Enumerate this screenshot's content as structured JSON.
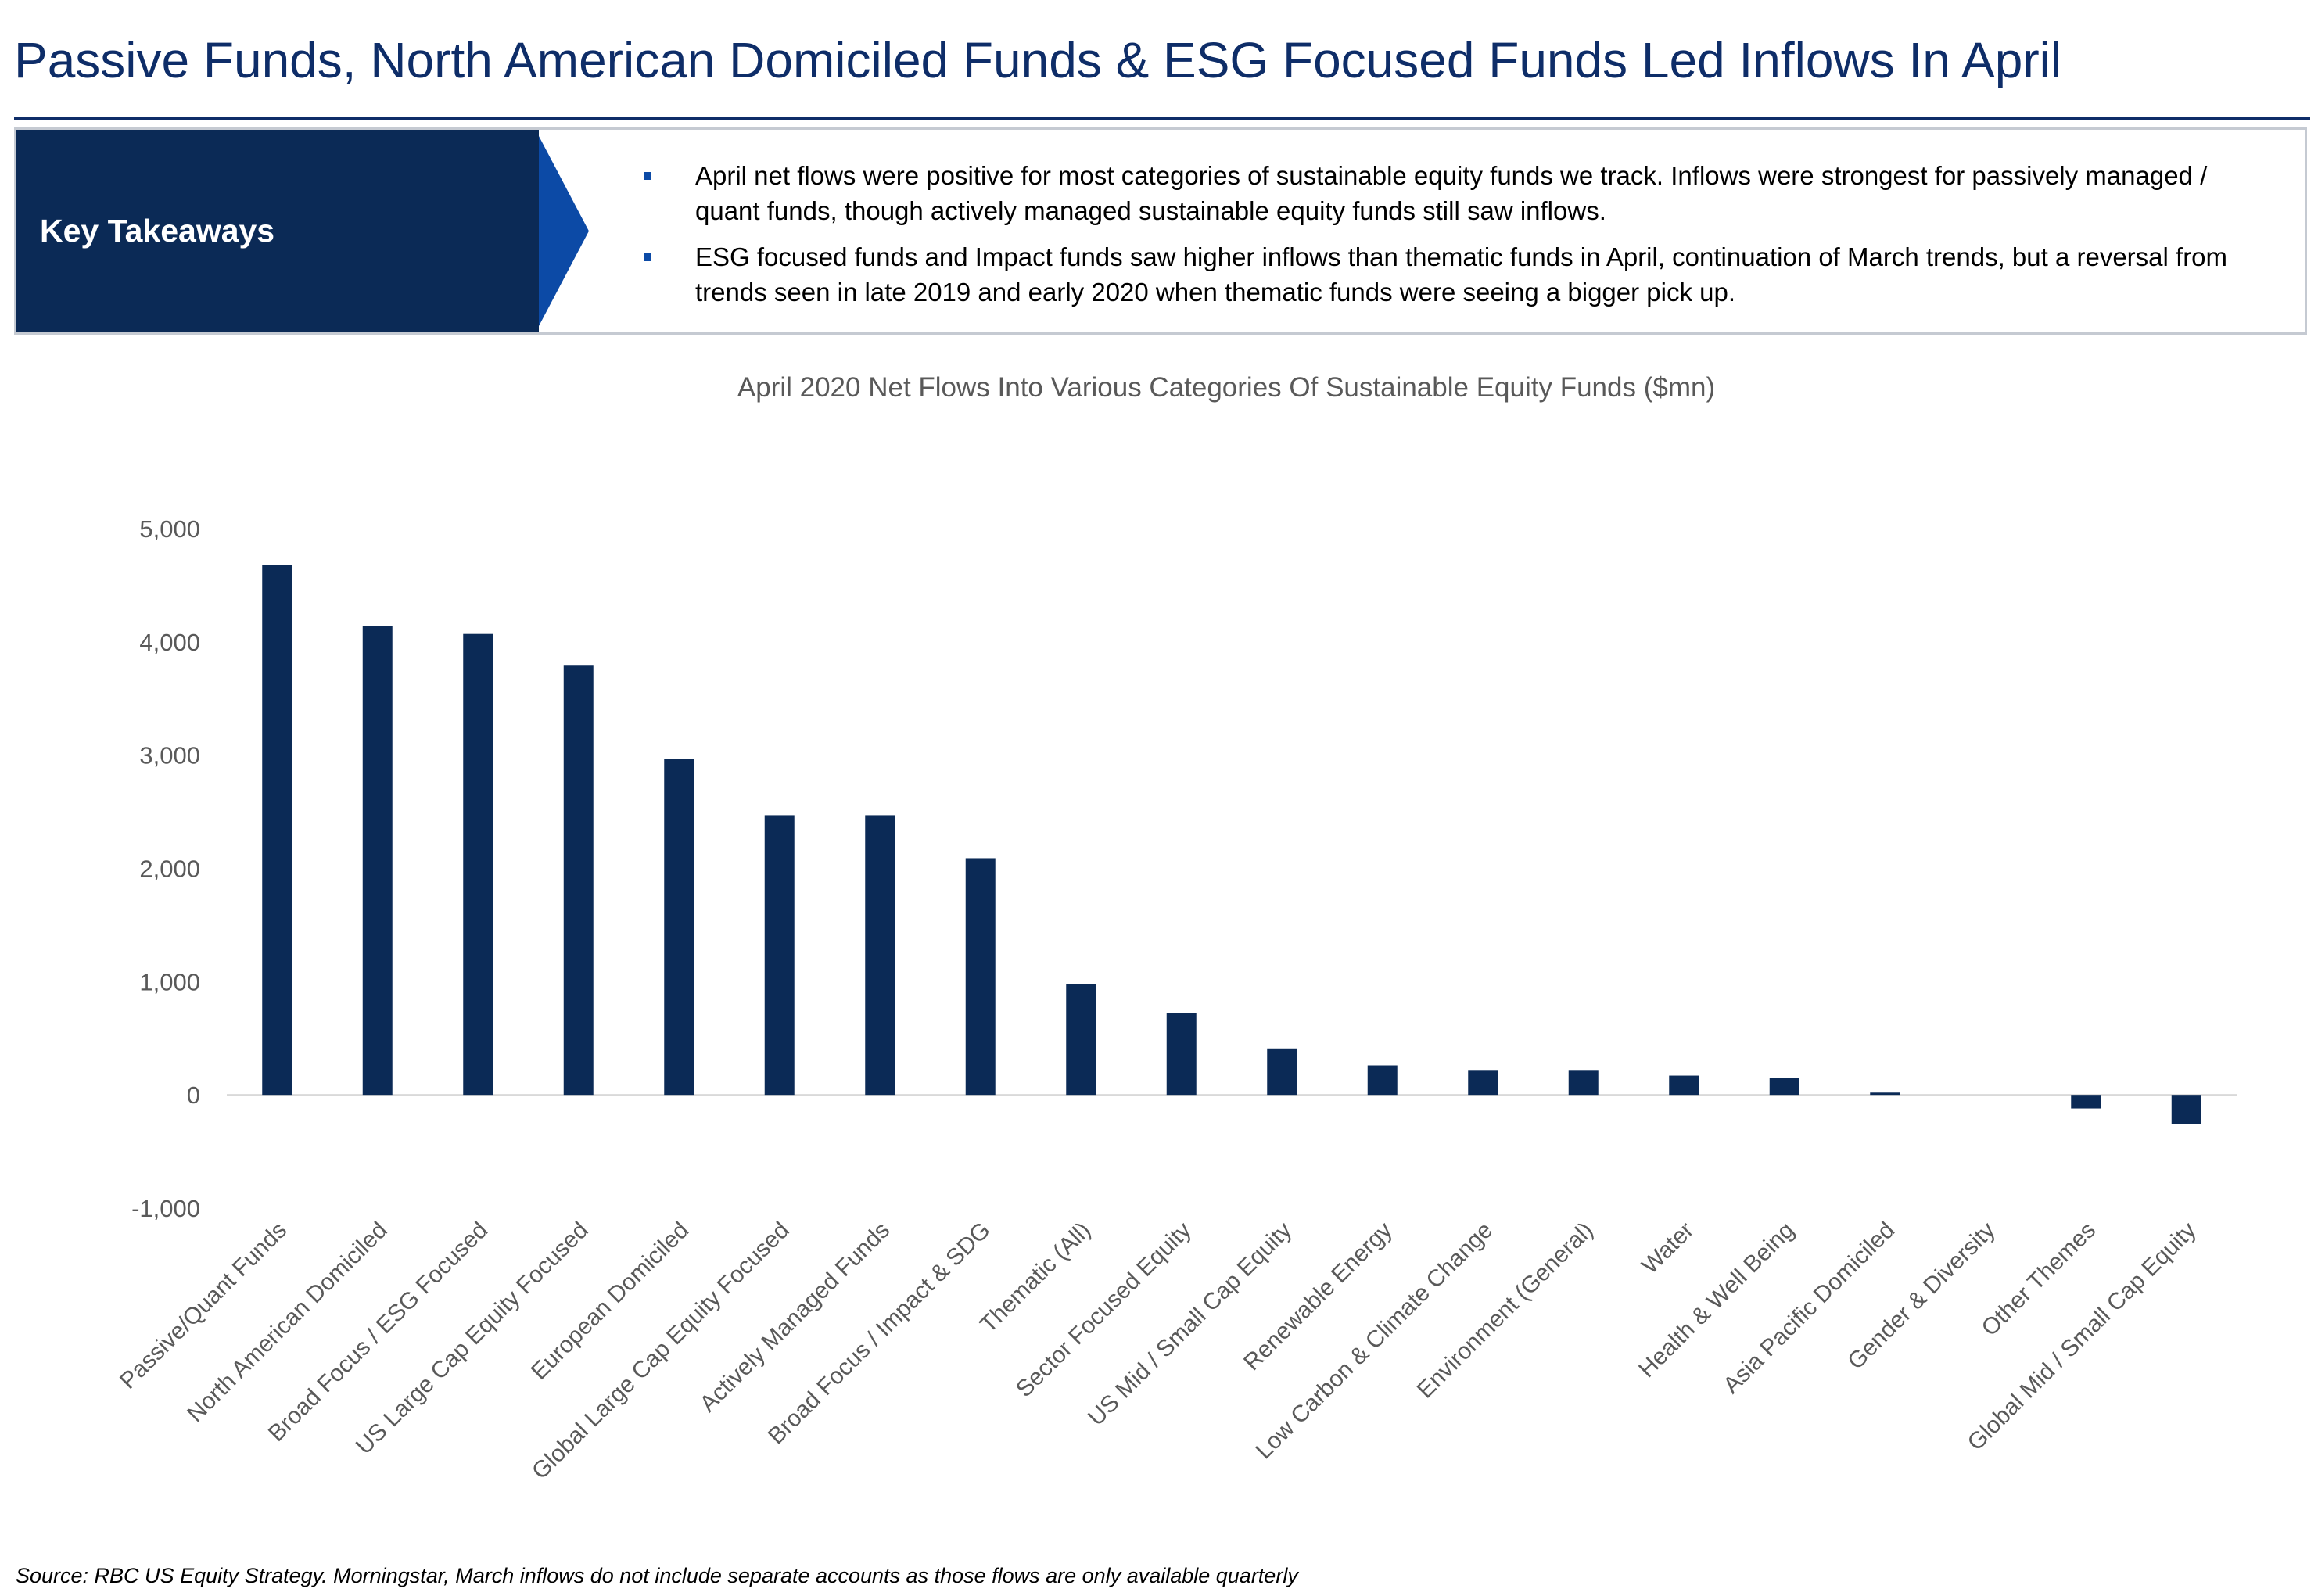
{
  "header": {
    "title": "Passive Funds, North American Domiciled Funds & ESG Focused Funds Led Inflows In April"
  },
  "takeaways": {
    "label": "Key Takeaways",
    "bullets": [
      "April net flows were positive for most categories of sustainable equity funds we track. Inflows were strongest for passively managed / quant funds, though actively managed sustainable equity funds still saw inflows.",
      "ESG focused funds and Impact funds saw higher inflows than thematic funds in April, continuation of March trends, but a reversal from trends seen in late 2019 and early 2020 when thematic funds were seeing a bigger pick up."
    ]
  },
  "chart_data": {
    "type": "bar",
    "title": "April 2020 Net Flows Into Various Categories Of Sustainable Equity Funds ($mn)",
    "xlabel": "",
    "ylabel": "",
    "ylim": [
      -1000,
      5000
    ],
    "yticks": [
      5000,
      4000,
      3000,
      2000,
      1000,
      0,
      -1000
    ],
    "ytick_labels": [
      "5,000",
      "4,000",
      "3,000",
      "2,000",
      "1,000",
      "0",
      "-1,000"
    ],
    "grid": false,
    "categories": [
      "Passive/Quant Funds",
      "North American Domiciled",
      "Broad Focus / ESG Focused",
      "US Large Cap Equity Focused",
      "European Domiciled",
      "Global Large Cap Equity Focused",
      "Actively Managed Funds",
      "Broad Focus / Impact & SDG",
      "Thematic (All)",
      "Sector Focused Equity",
      "US Mid / Small Cap Equity",
      "Renewable Energy",
      "Low Carbon & Climate Change",
      "Environment (General)",
      "Water",
      "Health & Well Being",
      "Asia Pacific Domiciled",
      "Gender & Diversity",
      "Other Themes",
      "Global Mid / Small Cap Equity"
    ],
    "values": [
      4680,
      4140,
      4070,
      3790,
      2970,
      2470,
      2470,
      2090,
      980,
      720,
      410,
      260,
      220,
      220,
      170,
      150,
      20,
      0,
      -120,
      -260
    ]
  },
  "colors": {
    "bar": "#0b2a56",
    "title": "#0e2d68",
    "axis_text": "#595959"
  },
  "footer": {
    "source": "Source: RBC US Equity Strategy. Morningstar, March inflows do not include separate accounts as those flows are only available quarterly"
  }
}
